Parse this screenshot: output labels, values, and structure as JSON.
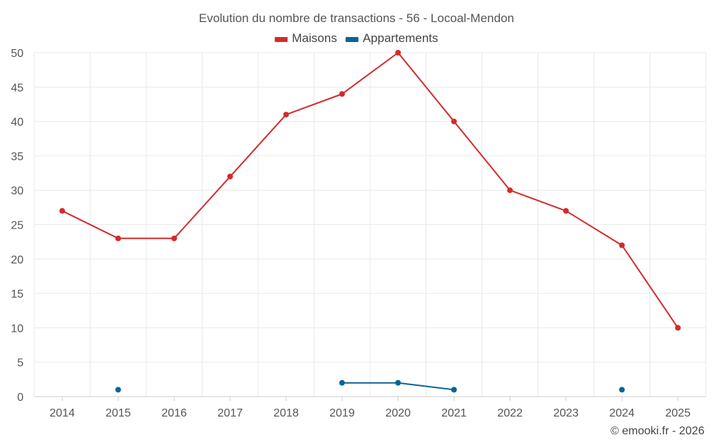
{
  "chart_data": {
    "type": "line",
    "title": "Evolution du nombre de transactions - 56 - Locoal-Mendon",
    "xlabel": "",
    "ylabel": "",
    "categories": [
      "2014",
      "2015",
      "2016",
      "2017",
      "2018",
      "2019",
      "2020",
      "2021",
      "2022",
      "2023",
      "2024",
      "2025"
    ],
    "ylim": [
      0,
      50
    ],
    "yticks": [
      0,
      5,
      10,
      15,
      20,
      25,
      30,
      35,
      40,
      45,
      50
    ],
    "legend_position": "top-center",
    "grid": true,
    "series": [
      {
        "name": "Maisons",
        "color": "#d42b2b",
        "values": [
          27,
          23,
          23,
          32,
          41,
          44,
          50,
          40,
          30,
          27,
          22,
          10
        ]
      },
      {
        "name": "Appartements",
        "color": "#0a6496",
        "values": [
          null,
          1,
          null,
          null,
          null,
          2,
          2,
          1,
          null,
          null,
          1,
          null
        ]
      }
    ]
  },
  "credit": "© emooki.fr - 2026"
}
